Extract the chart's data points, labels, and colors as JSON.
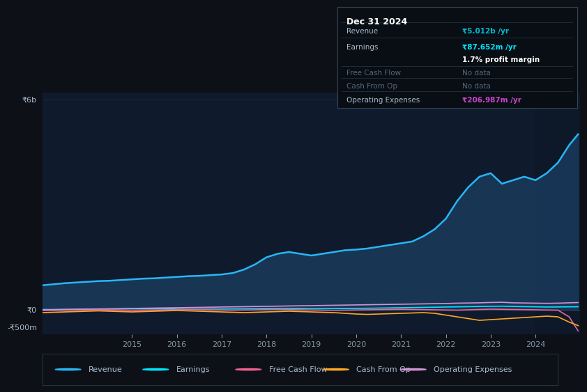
{
  "bg_color": "#0d1117",
  "chart_bg": "#0f1b2d",
  "grid_color": "#1e2d3d",
  "title_box": {
    "date": "Dec 31 2024",
    "rows": [
      {
        "label": "Revenue",
        "value": "₹5.012b /yr",
        "value_color": "#00bcd4",
        "dimmed": false
      },
      {
        "label": "Earnings",
        "value": "₹87.652m /yr",
        "value_color": "#00e5ff",
        "dimmed": false
      },
      {
        "label": "",
        "value": "1.7% profit margin",
        "value_color": "#ffffff",
        "dimmed": false
      },
      {
        "label": "Free Cash Flow",
        "value": "No data",
        "value_color": "#555e6b",
        "dimmed": true
      },
      {
        "label": "Cash From Op",
        "value": "No data",
        "value_color": "#555e6b",
        "dimmed": true
      },
      {
        "label": "Operating Expenses",
        "value": "₹206.987m /yr",
        "value_color": "#cc44cc",
        "dimmed": false
      }
    ]
  },
  "years": [
    2013.0,
    2013.25,
    2013.5,
    2013.75,
    2014.0,
    2014.25,
    2014.5,
    2014.75,
    2015.0,
    2015.25,
    2015.5,
    2015.75,
    2016.0,
    2016.25,
    2016.5,
    2016.75,
    2017.0,
    2017.25,
    2017.5,
    2017.75,
    2018.0,
    2018.25,
    2018.5,
    2018.75,
    2019.0,
    2019.25,
    2019.5,
    2019.75,
    2020.0,
    2020.25,
    2020.5,
    2020.75,
    2021.0,
    2021.25,
    2021.5,
    2021.75,
    2022.0,
    2022.25,
    2022.5,
    2022.75,
    2023.0,
    2023.25,
    2023.5,
    2023.75,
    2024.0,
    2024.25,
    2024.5,
    2024.75,
    2024.95
  ],
  "revenue": [
    700,
    730,
    760,
    780,
    800,
    820,
    830,
    850,
    870,
    890,
    900,
    920,
    940,
    960,
    970,
    990,
    1010,
    1050,
    1150,
    1300,
    1500,
    1600,
    1650,
    1600,
    1550,
    1600,
    1650,
    1700,
    1720,
    1750,
    1800,
    1850,
    1900,
    1950,
    2100,
    2300,
    2600,
    3100,
    3500,
    3800,
    3900,
    3600,
    3700,
    3800,
    3700,
    3900,
    4200,
    4700,
    5012
  ],
  "earnings": [
    10,
    8,
    12,
    15,
    20,
    18,
    22,
    25,
    30,
    28,
    32,
    35,
    20,
    15,
    18,
    20,
    22,
    25,
    28,
    30,
    35,
    40,
    38,
    36,
    30,
    32,
    35,
    38,
    40,
    45,
    50,
    55,
    60,
    65,
    70,
    75,
    80,
    85,
    90,
    95,
    100,
    105,
    95,
    90,
    85,
    80,
    82,
    85,
    87.652
  ],
  "free_cash_flow": [
    -20,
    -15,
    -10,
    -5,
    0,
    5,
    -5,
    -10,
    -15,
    -10,
    -5,
    0,
    5,
    10,
    5,
    0,
    -5,
    -10,
    -5,
    0,
    5,
    10,
    5,
    0,
    -5,
    -10,
    -15,
    -10,
    -5,
    0,
    5,
    10,
    15,
    10,
    5,
    0,
    -5,
    -10,
    0,
    10,
    20,
    15,
    10,
    5,
    0,
    -5,
    -10,
    -200,
    -600
  ],
  "cash_from_op": [
    -80,
    -70,
    -60,
    -50,
    -40,
    -30,
    -40,
    -50,
    -60,
    -50,
    -40,
    -30,
    -20,
    -30,
    -40,
    -50,
    -60,
    -70,
    -80,
    -70,
    -60,
    -50,
    -40,
    -50,
    -60,
    -70,
    -80,
    -100,
    -120,
    -130,
    -120,
    -110,
    -100,
    -90,
    -80,
    -100,
    -150,
    -200,
    -250,
    -300,
    -280,
    -260,
    -240,
    -220,
    -200,
    -180,
    -200,
    -350,
    -450
  ],
  "operating_expenses": [
    0,
    5,
    10,
    15,
    20,
    25,
    30,
    35,
    40,
    45,
    50,
    55,
    60,
    65,
    70,
    75,
    80,
    85,
    90,
    95,
    100,
    105,
    110,
    115,
    120,
    125,
    130,
    135,
    140,
    145,
    150,
    155,
    160,
    165,
    170,
    175,
    180,
    190,
    195,
    200,
    210,
    215,
    200,
    195,
    190,
    185,
    190,
    200,
    206.987
  ],
  "ylim": [
    -700,
    6200
  ],
  "yticks": [
    0,
    6000
  ],
  "ytick_labels": [
    "₹0",
    "₹6b"
  ],
  "ymid_label": "₹0",
  "yminus_label": "-₹500m",
  "xmin": 2013.0,
  "xmax": 2025.0,
  "xticks": [
    2015,
    2016,
    2017,
    2018,
    2019,
    2020,
    2021,
    2022,
    2023,
    2024
  ],
  "revenue_color": "#29b6f6",
  "revenue_fill": "#1565c0",
  "earnings_color": "#00e5ff",
  "fcf_color": "#f06292",
  "cfo_color": "#ffa726",
  "opex_color": "#ce93d8",
  "legend": [
    {
      "label": "Revenue",
      "color": "#29b6f6"
    },
    {
      "label": "Earnings",
      "color": "#00e5ff"
    },
    {
      "label": "Free Cash Flow",
      "color": "#f06292"
    },
    {
      "label": "Cash From Op",
      "color": "#ffa726"
    },
    {
      "label": "Operating Expenses",
      "color": "#ce93d8"
    }
  ]
}
